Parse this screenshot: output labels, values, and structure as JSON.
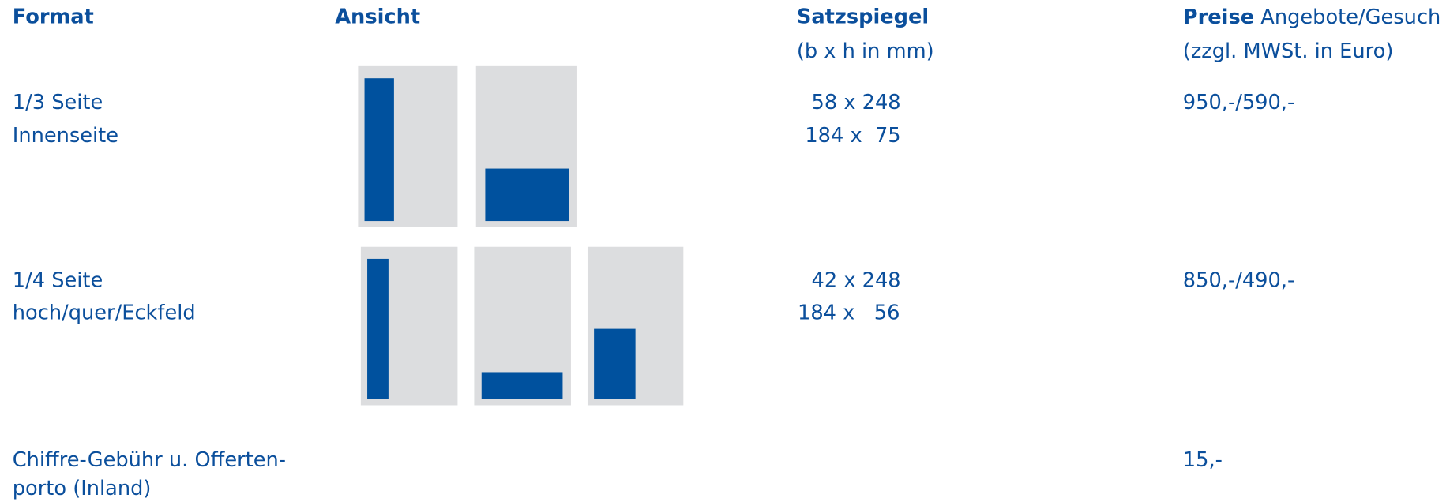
{
  "header": {
    "format": "Format",
    "ansicht": "Ansicht",
    "satzspiegel": "Satzspiegel",
    "satzspiegel_unit": "(b x h in mm)",
    "preise": "Preise",
    "preise_detail": "Angebote/Gesuch",
    "preise_unit": "(zzgl. MWSt. in Euro)"
  },
  "rows": [
    {
      "format": [
        "1/3 Seite",
        "Innenseite"
      ],
      "satzspiegel": [
        " 58 x 248",
        "184 x  75"
      ],
      "preis": "950,-/590,-"
    },
    {
      "format": [
        "1/4 Seite",
        "hoch/quer/Eckfeld"
      ],
      "satzspiegel": [
        " 42 x 248",
        "184 x   56"
      ],
      "preis": "850,-/490,-"
    },
    {
      "format": [
        "Chiffre-Gebühr u. Offerten-",
        "porto (Inland)"
      ],
      "preis": "15,-"
    }
  ]
}
